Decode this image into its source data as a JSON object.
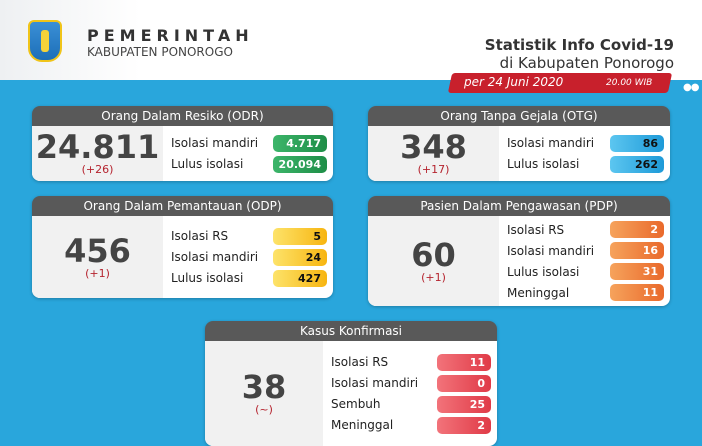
{
  "header": {
    "org": "PEMERINTAH",
    "region": "KABUPATEN PONOROGO",
    "title": "Statistik Info Covid-19",
    "subtitle": "di Kabupaten Ponorogo",
    "date": "per 24 Juni 2020",
    "time": "20.00 WIB"
  },
  "odr": {
    "title": "Orang Dalam Resiko (ODR)",
    "total": "24.811",
    "delta": "(+26)",
    "items": [
      {
        "label": "Isolasi mandiri",
        "value": "4.717"
      },
      {
        "label": "Lulus isolasi",
        "value": "20.094"
      }
    ]
  },
  "otg": {
    "title": "Orang Tanpa Gejala (OTG)",
    "total": "348",
    "delta": "(+17)",
    "items": [
      {
        "label": "Isolasi mandiri",
        "value": "86"
      },
      {
        "label": "Lulus isolasi",
        "value": "262"
      }
    ]
  },
  "odp": {
    "title": "Orang Dalam Pemantauan (ODP)",
    "total": "456",
    "delta": "(+1)",
    "items": [
      {
        "label": "Isolasi RS",
        "value": "5"
      },
      {
        "label": "Isolasi mandiri",
        "value": "24"
      },
      {
        "label": "Lulus isolasi",
        "value": "427"
      }
    ]
  },
  "pdp": {
    "title": "Pasien Dalam Pengawasan (PDP)",
    "total": "60",
    "delta": "(+1)",
    "items": [
      {
        "label": "Isolasi RS",
        "value": "2"
      },
      {
        "label": "Isolasi mandiri",
        "value": "16"
      },
      {
        "label": "Lulus isolasi",
        "value": "31"
      },
      {
        "label": "Meninggal",
        "value": "11"
      }
    ]
  },
  "konf": {
    "title": "Kasus Konfirmasi",
    "total": "38",
    "delta": "(~)",
    "items": [
      {
        "label": "Isolasi RS",
        "value": "11"
      },
      {
        "label": "Isolasi mandiri",
        "value": "0"
      },
      {
        "label": "Sembuh",
        "value": "25"
      },
      {
        "label": "Meninggal",
        "value": "2"
      }
    ]
  }
}
